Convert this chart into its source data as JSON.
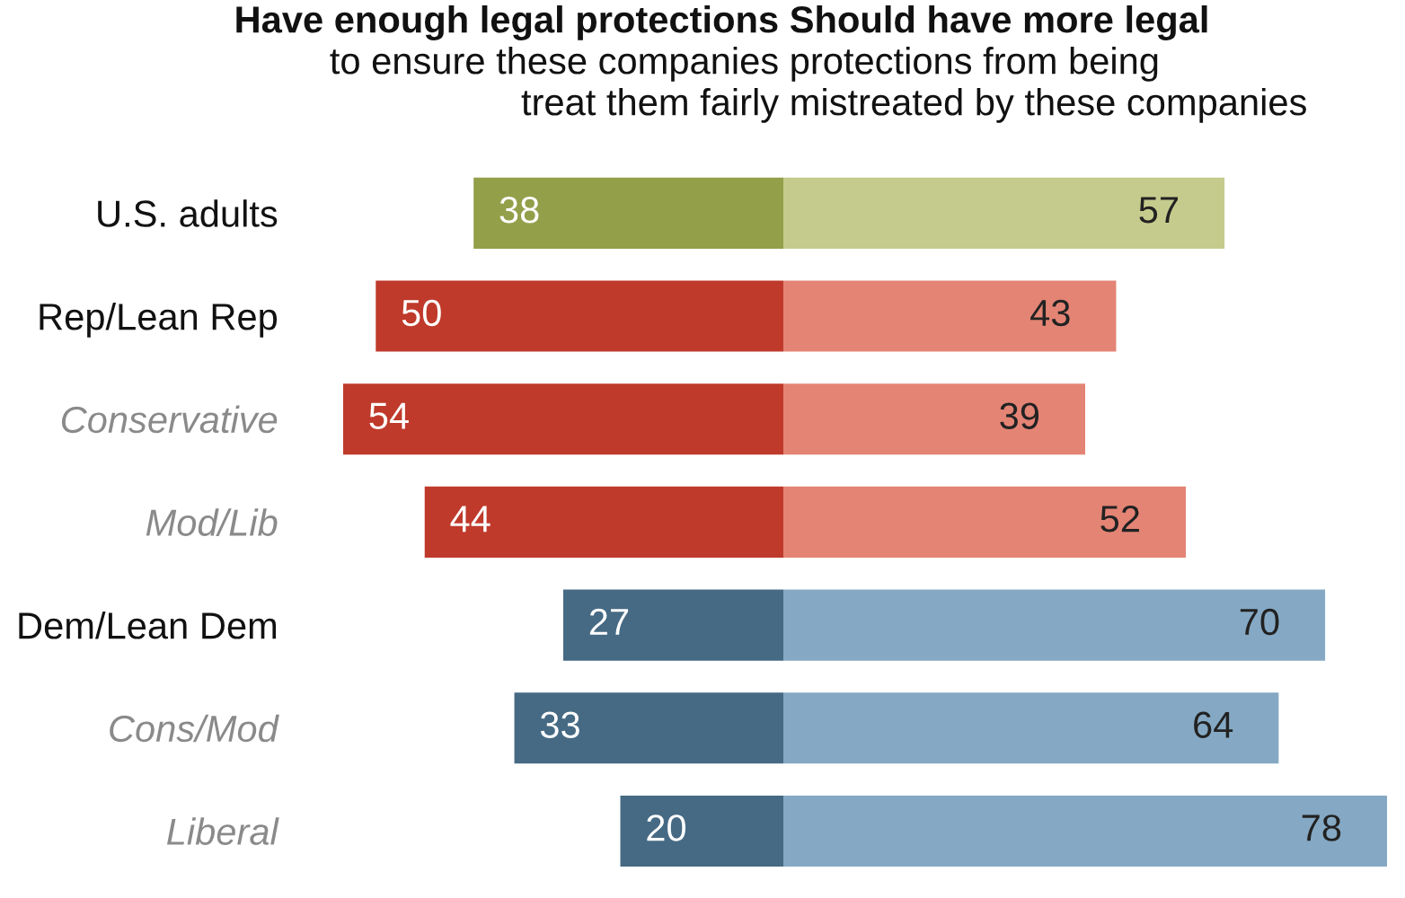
{
  "chart_data": [
    {
      "type": "bar",
      "orientation": "horizontal",
      "title": "Have enough legal protections\nto ensure these companies\ntreat them fairly",
      "categories": [
        "U.S. adults",
        "Rep/Lean Rep",
        "Conservative",
        "Mod/Lib",
        "Dem/Lean Dem",
        "Cons/Mod",
        "Liberal"
      ],
      "values": [
        38,
        50,
        54,
        44,
        27,
        33,
        20
      ],
      "colors": [
        "#949f4a",
        "#bf3a2b",
        "#bf3a2b",
        "#bf3a2b",
        "#466a84",
        "#466a84",
        "#466a84"
      ],
      "xlim": [
        54,
        0
      ],
      "data_labels": true,
      "tick_labels": "y"
    },
    {
      "type": "bar",
      "orientation": "horizontal",
      "title": "Should have more legal\nprotections from being\nmistreated by these companies",
      "categories": [
        null,
        null,
        null,
        null,
        null,
        null,
        null
      ],
      "values": [
        57,
        43,
        39,
        52,
        70,
        64,
        78
      ],
      "colors": [
        "#c5cb8d",
        "#e48475",
        "#e48475",
        "#e48475",
        "#85a9c4",
        "#85a9c4",
        "#85a9c4"
      ],
      "xlim": [
        0,
        78
      ],
      "data_labels": true,
      "tick_labels": false
    }
  ]
}
